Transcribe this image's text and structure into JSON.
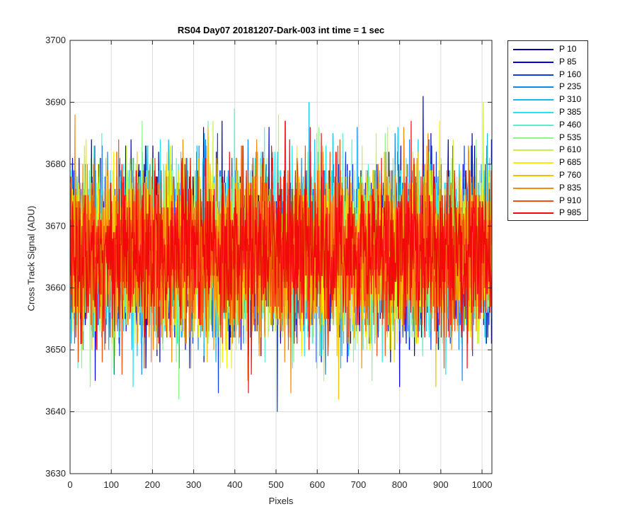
{
  "chart_data": {
    "type": "line",
    "title": "RS04 Day07 20181207-Dark-003 int time = 1 sec",
    "xlabel": "Pixels",
    "ylabel": "Cross Track Signal (ADU)",
    "xlim": [
      0,
      1024
    ],
    "ylim": [
      3630,
      3700
    ],
    "xticks": [
      0,
      100,
      200,
      300,
      400,
      500,
      600,
      700,
      800,
      900,
      1000
    ],
    "yticks": [
      3630,
      3640,
      3650,
      3660,
      3670,
      3680,
      3690,
      3700
    ],
    "grid": true,
    "legend_position": "outside-right-top",
    "series": [
      {
        "name": "P 10",
        "color": "#0000A6",
        "mean": 3666,
        "spread": 6.5
      },
      {
        "name": "P 85",
        "color": "#0000E0",
        "mean": 3666,
        "spread": 6.5
      },
      {
        "name": "P 160",
        "color": "#0A3FE6",
        "mean": 3666,
        "spread": 6.5
      },
      {
        "name": "P 235",
        "color": "#0F86F0",
        "mean": 3666,
        "spread": 6.5
      },
      {
        "name": "P 310",
        "color": "#12BDF2",
        "mean": 3666,
        "spread": 6.5
      },
      {
        "name": "P 385",
        "color": "#1FE6F0",
        "mean": 3666,
        "spread": 6.5
      },
      {
        "name": "P 460",
        "color": "#5CF0C8",
        "mean": 3666,
        "spread": 6.5
      },
      {
        "name": "P 535",
        "color": "#8CF58C",
        "mean": 3666,
        "spread": 6.5
      },
      {
        "name": "P 610",
        "color": "#C6F24B",
        "mean": 3666,
        "spread": 6.5
      },
      {
        "name": "P 685",
        "color": "#F5F000",
        "mean": 3666,
        "spread": 6.5
      },
      {
        "name": "P 760",
        "color": "#F5C000",
        "mean": 3666,
        "spread": 6.5
      },
      {
        "name": "P 835",
        "color": "#F58A0A",
        "mean": 3666,
        "spread": 6.5
      },
      {
        "name": "P 910",
        "color": "#F2500F",
        "mean": 3666,
        "spread": 6.5
      },
      {
        "name": "P 985",
        "color": "#F20A0A",
        "mean": 3666,
        "spread": 6.5
      }
    ],
    "x_start": 0,
    "x_end": 1024,
    "x_step": 1
  }
}
